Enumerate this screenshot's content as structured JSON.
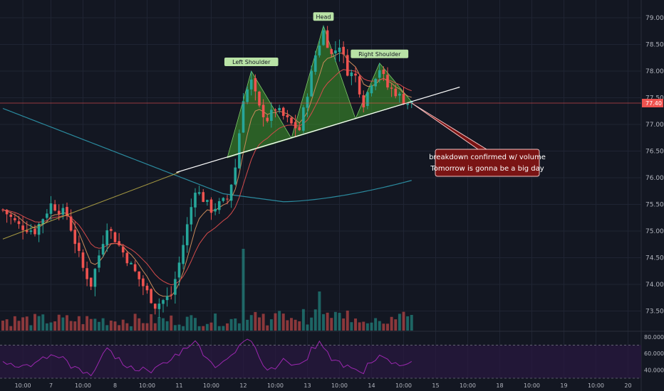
{
  "chart_data": {
    "type": "candlestick",
    "colors": {
      "background": "#131722",
      "grid": "#1f2433",
      "up": "#26a69a",
      "down": "#ef5350",
      "pattern_fill": "#3f9b2a",
      "trendline": "#ffffff",
      "sma_long": "#2b8a9e",
      "ema_fast": "#c98a5a",
      "ema_slow": "#d44b4b",
      "price_line": "#ef5350",
      "rsi_line": "#9c27b0",
      "rsi_band": "#2a1840",
      "callout_bg": "#7a1414",
      "label_bg": "#b9e3a6"
    },
    "price_axis": {
      "ylim": [
        73.2,
        79.2
      ],
      "ticks": [
        "79.00",
        "78.50",
        "78.00",
        "77.50",
        "77.00",
        "76.50",
        "76.00",
        "75.50",
        "75.00",
        "74.50",
        "74.00",
        "73.50"
      ],
      "tick_values": [
        79.0,
        78.5,
        78.0,
        77.5,
        77.0,
        76.5,
        76.0,
        75.5,
        75.0,
        74.5,
        74.0,
        73.5
      ],
      "last_price": 77.4,
      "last_price_label": "77.40"
    },
    "rsi_axis": {
      "ylim": [
        30,
        85
      ],
      "ticks": [
        "80.0000",
        "60.0000",
        "40.0000"
      ],
      "tick_values": [
        80,
        60,
        40
      ],
      "band": [
        30,
        70
      ]
    },
    "time_axis": {
      "labels": [
        "10:00",
        "7",
        "10:00",
        "8",
        "10:00",
        "11",
        "10:00",
        "12",
        "10:00",
        "13",
        "10:00",
        "14",
        "10:00",
        "15",
        "10:00",
        "18",
        "10:00",
        "19",
        "10:00",
        "20"
      ],
      "label_bar_index": [
        5,
        12,
        20,
        28,
        36,
        44,
        52,
        60,
        68,
        76,
        84,
        92,
        100,
        108,
        116,
        124,
        132,
        140,
        148,
        156
      ]
    },
    "pattern": {
      "name": "head and shoulders",
      "left_shoulder": {
        "label": "Left Shoulder",
        "bar": 62,
        "price": 78.0
      },
      "head": {
        "label": "Head",
        "bar": 80,
        "price": 78.85
      },
      "right_shoulder": {
        "label": "Right Shoulder",
        "bar": 94,
        "price": 78.15
      },
      "neckline": {
        "from_bar": 44,
        "from_price": 76.1,
        "to_bar": 114,
        "to_price": 77.7
      },
      "long_trendline": {
        "from_bar": 0,
        "from_price": 74.85,
        "to_bar": 44,
        "to_price": 76.1
      }
    },
    "callout": {
      "lines": [
        "breakdown confirmed w/ volume",
        "Tomorrow is gonna be a big day"
      ],
      "anchor_bar": 102,
      "anchor_price": 77.4
    },
    "bars": 103
  }
}
